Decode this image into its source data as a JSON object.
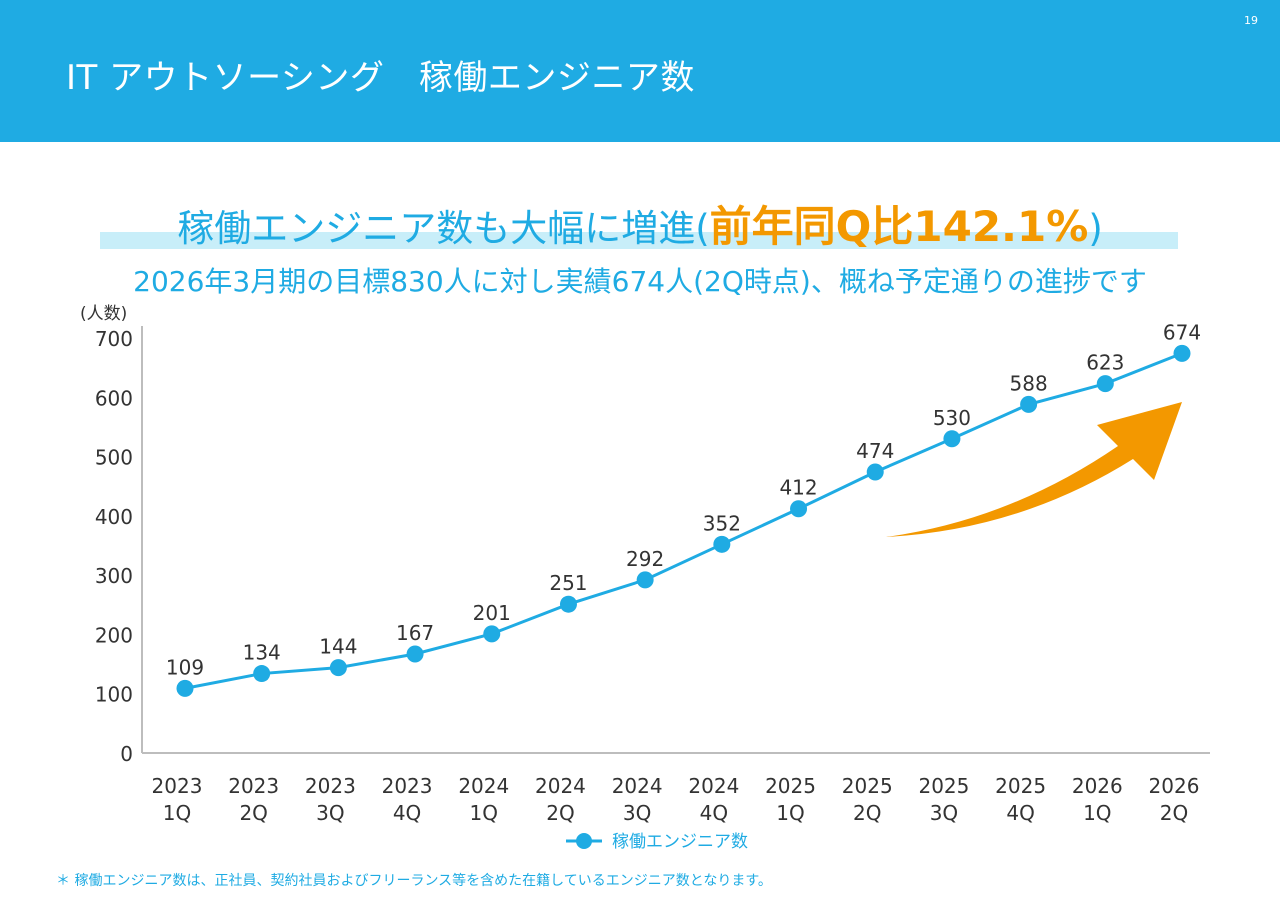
{
  "header": {
    "title": "IT アウトソーシング　稼働エンジニア数",
    "page_number": "19",
    "background_color": "#1FABE3"
  },
  "headline": {
    "main": "稼働エンジニア数も大幅に増進(",
    "accent": "前年同Q比142.1%",
    "close": ")",
    "main_color": "#1FABE3",
    "accent_color": "#F39800"
  },
  "subline": "2026年3月期の目標830人に対し実績674人(2Q時点)、概ね予定通りの進捗です",
  "footnote": "＊ 稼働エンジニア数は、正社員、契約社員およびフリーランス等を含めた在籍しているエンジニア数となります。",
  "chart_data": {
    "type": "line",
    "title": "",
    "xlabel": "",
    "ylabel": "(人数)",
    "ylim": [
      0,
      700
    ],
    "yticks": [
      0,
      100,
      200,
      300,
      400,
      500,
      600,
      700
    ],
    "grid": false,
    "categories": [
      [
        "2023",
        "1Q"
      ],
      [
        "2023",
        "2Q"
      ],
      [
        "2023",
        "3Q"
      ],
      [
        "2023",
        "4Q"
      ],
      [
        "2024",
        "1Q"
      ],
      [
        "2024",
        "2Q"
      ],
      [
        "2024",
        "3Q"
      ],
      [
        "2024",
        "4Q"
      ],
      [
        "2025",
        "1Q"
      ],
      [
        "2025",
        "2Q"
      ],
      [
        "2025",
        "3Q"
      ],
      [
        "2025",
        "4Q"
      ],
      [
        "2026",
        "1Q"
      ],
      [
        "2026",
        "2Q"
      ]
    ],
    "series": [
      {
        "name": "稼働エンジニア数",
        "color": "#1FABE3",
        "values": [
          109,
          134,
          144,
          167,
          201,
          251,
          292,
          352,
          412,
          474,
          530,
          588,
          623,
          674
        ]
      }
    ],
    "data_labels": true,
    "legend_position": "bottom-center",
    "annotation": {
      "type": "arrow",
      "direction": "up-right",
      "color": "#F39800"
    }
  }
}
